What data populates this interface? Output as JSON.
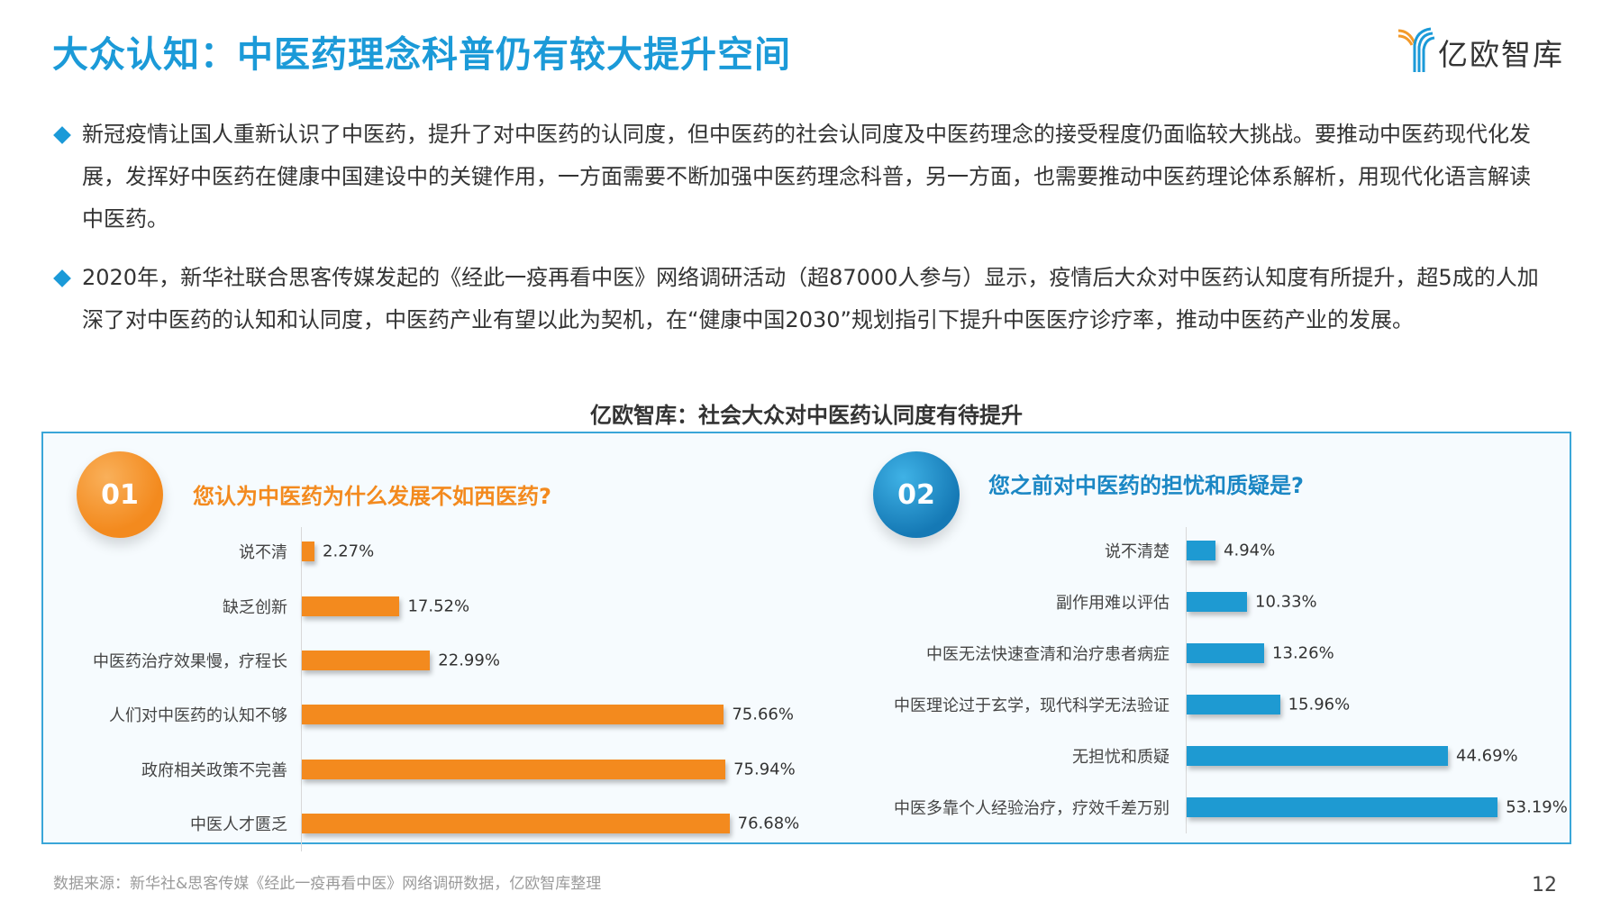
{
  "header": {
    "title": "大众认知：中医药理念科普仍有较大提升空间",
    "logo_text": "亿欧智库"
  },
  "bullets": [
    "新冠疫情让国人重新认识了中医药，提升了对中医药的认同度，但中医药的社会认同度及中医药理念的接受程度仍面临较大挑战。要推动中医药现代化发展，发挥好中医药在健康中国建设中的关键作用，一方面需要不断加强中医药理念科普，另一方面，也需要推动中医药理论体系解析，用现代化语言解读中医药。",
    "2020年，新华社联合思客传媒发起的《经此一疫再看中医》网络调研活动（超87000人参与）显示，疫情后大众对中医药认知度有所提升，超5成的人加深了对中医药的认知和认同度，中医药产业有望以此为契机，在“健康中国2030”规划指引下提升中医医疗诊疗率，推动中医药产业的发展。"
  ],
  "colors": {
    "orange": "#f38a1e",
    "blue": "#1e9ad2"
  },
  "chart_data": [
    {
      "type": "bar",
      "orientation": "horizontal",
      "badge": "01",
      "title": "亿欧智库：社会大众对中医药认同度有待提升",
      "question": "您认为中医药为什么发展不如西医药?",
      "categories": [
        "说不清",
        "缺乏创新",
        "中医药治疗效果慢，疗程长",
        "人们对中医药的认知不够",
        "政府相关政策不完善",
        "中医人才匮乏"
      ],
      "values": [
        2.27,
        17.52,
        22.99,
        75.66,
        75.94,
        76.68
      ],
      "labels": [
        "2.27%",
        "17.52%",
        "22.99%",
        "75.66%",
        "75.94%",
        "76.68%"
      ],
      "unit": "%"
    },
    {
      "type": "bar",
      "orientation": "horizontal",
      "badge": "02",
      "question": "您之前对中医药的担忧和质疑是?",
      "categories": [
        "说不清楚",
        "副作用难以评估",
        "中医无法快速查清和治疗患者病症",
        "中医理论过于玄学，现代科学无法验证",
        "无担忧和质疑",
        "中医多靠个人经验治疗，疗效千差万别"
      ],
      "values": [
        4.94,
        10.33,
        13.26,
        15.96,
        44.69,
        53.19
      ],
      "labels": [
        "4.94%",
        "10.33%",
        "13.26%",
        "15.96%",
        "44.69%",
        "53.19%"
      ],
      "unit": "%"
    }
  ],
  "chart_title": "亿欧智库：社会大众对中医药认同度有待提升",
  "footer": {
    "source": "数据来源：新华社&思客传媒《经此一疫再看中医》网络调研数据，亿欧智库整理",
    "page": "12"
  }
}
